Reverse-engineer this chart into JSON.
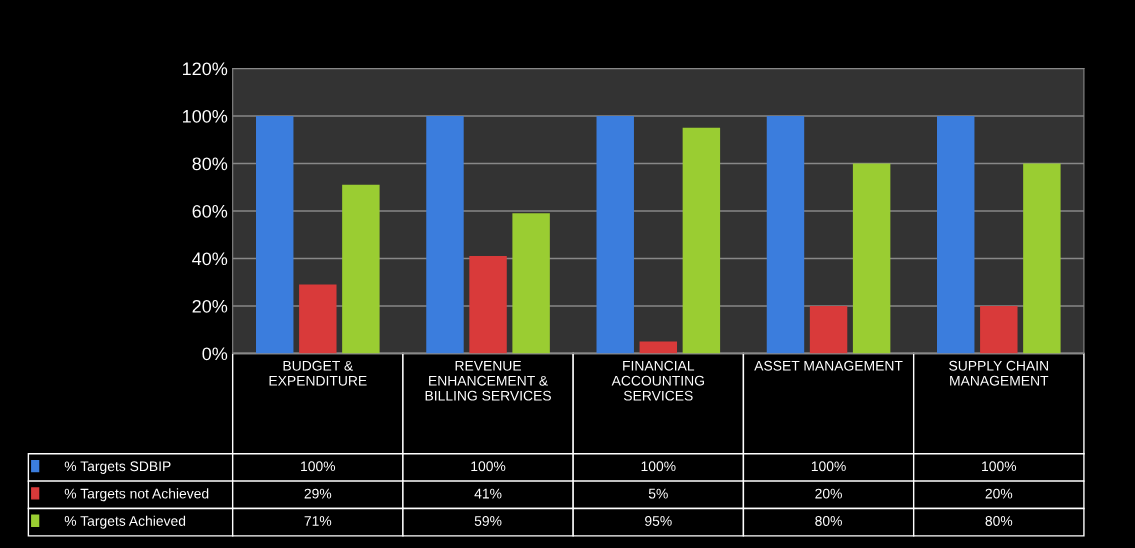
{
  "chart_data": {
    "type": "bar",
    "categories": [
      "BUDGET & EXPENDITURE",
      "REVENUE ENHANCEMENT & BILLING SERVICES",
      "FINANCIAL ACCOUNTING SERVICES",
      "ASSET MANAGEMENT",
      "SUPPLY CHAIN MANAGEMENT"
    ],
    "series": [
      {
        "name": "% Targets SDBIP",
        "color": "#3b7ddd",
        "values": [
          100,
          100,
          100,
          100,
          100
        ],
        "value_labels": [
          "100%",
          "100%",
          "100%",
          "100%",
          "100%"
        ]
      },
      {
        "name": "% Targets not Achieved",
        "color": "#d93a3a",
        "values": [
          29,
          41,
          5,
          20,
          20
        ],
        "value_labels": [
          "29%",
          "41%",
          "5%",
          "20%",
          "20%"
        ]
      },
      {
        "name": "% Targets Achieved",
        "color": "#9acd32",
        "values": [
          71,
          59,
          95,
          80,
          80
        ],
        "value_labels": [
          "71%",
          "59%",
          "95%",
          "80%",
          "80%"
        ]
      }
    ],
    "ylim": [
      0,
      120
    ],
    "yticks": [
      {
        "value": 0,
        "label": "0%"
      },
      {
        "value": 20,
        "label": "20%"
      },
      {
        "value": 40,
        "label": "40%"
      },
      {
        "value": 60,
        "label": "60%"
      },
      {
        "value": 80,
        "label": "80%"
      },
      {
        "value": 100,
        "label": "100%"
      },
      {
        "value": 120,
        "label": "120%"
      }
    ],
    "grid": "y",
    "legend": "bottom left"
  }
}
